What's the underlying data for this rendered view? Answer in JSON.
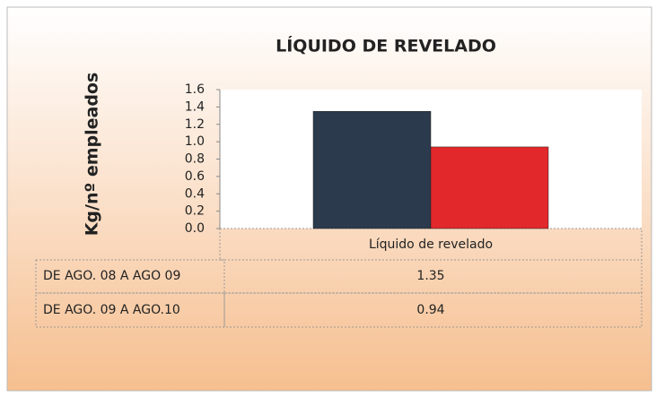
{
  "chart_data": {
    "type": "bar",
    "title": "LÍQUIDO DE REVELADO",
    "y_label": "Kg/nº empleados",
    "categories": [
      "Líquido de revelado"
    ],
    "series": [
      {
        "name": "DE AGO. 08 A AGO 09",
        "color": "#2c3a4d",
        "values": [
          1.35
        ]
      },
      {
        "name": "DE AGO. 09 A AGO.10",
        "color": "#e2282b",
        "values": [
          0.94
        ]
      }
    ],
    "ylim": [
      0,
      1.6
    ],
    "yticks": [
      {
        "value": 0,
        "label": "0.0"
      },
      0.2,
      0.4,
      0.6,
      0.8,
      {
        "value": 1,
        "label": "1.0"
      },
      1.2,
      1.4,
      1.6
    ],
    "grid": false
  }
}
